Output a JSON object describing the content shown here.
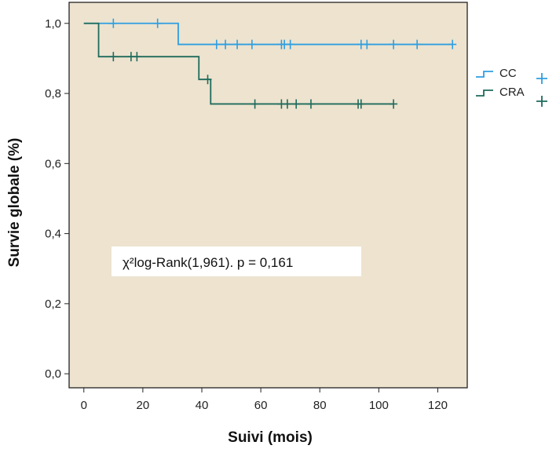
{
  "chart_data": {
    "type": "line",
    "subtype": "kaplan-meier",
    "title": "",
    "xlabel": "Suivi (mois)",
    "ylabel": "Survie globale (%)",
    "xlim": [
      -5,
      130
    ],
    "ylim": [
      -0.04,
      1.06
    ],
    "x_ticks": [
      0,
      20,
      40,
      60,
      80,
      100,
      120
    ],
    "x_tick_labels": [
      "0",
      "20",
      "40",
      "60",
      "80",
      "100",
      "120"
    ],
    "y_ticks": [
      0.0,
      0.2,
      0.4,
      0.6,
      0.8,
      1.0
    ],
    "y_tick_labels": [
      "0,0",
      "0,2",
      "0,4",
      "0,6",
      "0,8",
      "1,0"
    ],
    "grid": false,
    "background_color": "#ede3cf",
    "legend_position": "right",
    "annotation": "χ²log-Rank(1,961). p = 0,161",
    "series": [
      {
        "name": "CC",
        "color": "#2f9fe0",
        "steps": [
          [
            0,
            1.0
          ],
          [
            32,
            0.94
          ],
          [
            125,
            0.94
          ]
        ],
        "censored": [
          [
            10,
            1.0
          ],
          [
            25,
            1.0
          ],
          [
            45,
            0.94
          ],
          [
            48,
            0.94
          ],
          [
            52,
            0.94
          ],
          [
            57,
            0.94
          ],
          [
            67,
            0.94
          ],
          [
            68,
            0.94
          ],
          [
            70,
            0.94
          ],
          [
            94,
            0.94
          ],
          [
            96,
            0.94
          ],
          [
            105,
            0.94
          ],
          [
            113,
            0.94
          ],
          [
            125,
            0.94
          ]
        ]
      },
      {
        "name": "CRA",
        "color": "#1f6b5c",
        "steps": [
          [
            0,
            1.0
          ],
          [
            5,
            0.905
          ],
          [
            39,
            0.84
          ],
          [
            43,
            0.77
          ],
          [
            105,
            0.77
          ]
        ],
        "censored": [
          [
            10,
            0.905
          ],
          [
            16,
            0.905
          ],
          [
            18,
            0.905
          ],
          [
            42,
            0.84
          ],
          [
            58,
            0.77
          ],
          [
            67,
            0.77
          ],
          [
            69,
            0.77
          ],
          [
            72,
            0.77
          ],
          [
            77,
            0.77
          ],
          [
            93,
            0.77
          ],
          [
            94,
            0.77
          ],
          [
            105,
            0.77
          ]
        ]
      }
    ]
  }
}
